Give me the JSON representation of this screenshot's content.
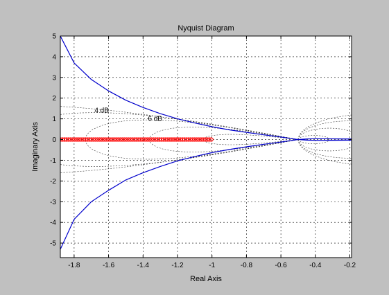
{
  "chart_data": {
    "type": "line",
    "title": "Nyquist Diagram",
    "xlabel": "Real Axis",
    "ylabel": "Imaginary Axis",
    "xlim": [
      -1.88,
      -0.19
    ],
    "ylim": [
      -5.7,
      5.0
    ],
    "grid": true,
    "x_ticks": [
      -1.8,
      -1.6,
      -1.4,
      -1.2,
      -1,
      -0.8,
      -0.6,
      -0.4,
      -0.2
    ],
    "y_ticks": [
      -5,
      -4,
      -3,
      -2,
      -1,
      0,
      1,
      2,
      3,
      4,
      5
    ],
    "x_tick_labels": [
      "-1.8",
      "-1.6",
      "-1.4",
      "-1.2",
      "-1",
      "-0.8",
      "-0.6",
      "-0.4",
      "-0.2"
    ],
    "y_tick_labels": [
      "-5",
      "-4",
      "-3",
      "-2",
      "-1",
      "0",
      "1",
      "2",
      "3",
      "4",
      "5"
    ],
    "grid_annotations": [
      {
        "text": "4 dB",
        "x": -1.64,
        "y": 1.3
      },
      {
        "text": "6 dB",
        "x": -1.33,
        "y": 0.9
      }
    ],
    "series": [
      {
        "color": "#0000cc",
        "x": [
          -1.88,
          -1.8,
          -1.7,
          -1.6,
          -1.5,
          -1.4,
          -1.3,
          -1.2,
          -1.1,
          -1.0,
          -0.9,
          -0.8,
          -0.7,
          -0.6,
          -0.55,
          -0.5,
          -0.45,
          -0.4,
          -0.3,
          -0.19
        ],
        "y": [
          5.0,
          3.7,
          2.9,
          2.35,
          1.9,
          1.55,
          1.25,
          1.0,
          0.8,
          0.62,
          0.47,
          0.35,
          0.23,
          0.12,
          0.06,
          0.0,
          -0.03,
          -0.04,
          -0.035,
          -0.03
        ]
      },
      {
        "color": "#0000cc",
        "x": [
          -1.88,
          -1.8,
          -1.7,
          -1.6,
          -1.5,
          -1.4,
          -1.3,
          -1.2,
          -1.1,
          -1.0,
          -0.9,
          -0.8,
          -0.7,
          -0.6,
          -0.55,
          -0.5,
          -0.45,
          -0.4,
          -0.3,
          -0.19
        ],
        "y": [
          -5.3,
          -3.85,
          -3.0,
          -2.45,
          -1.95,
          -1.6,
          -1.3,
          -1.03,
          -0.82,
          -0.63,
          -0.48,
          -0.35,
          -0.23,
          -0.12,
          -0.06,
          0.0,
          0.03,
          0.04,
          0.035,
          0.03
        ]
      }
    ],
    "markers": {
      "color": "#ff0000",
      "symbol": "circle",
      "y": 0,
      "x_range": [
        -1.88,
        -1.0
      ]
    }
  }
}
